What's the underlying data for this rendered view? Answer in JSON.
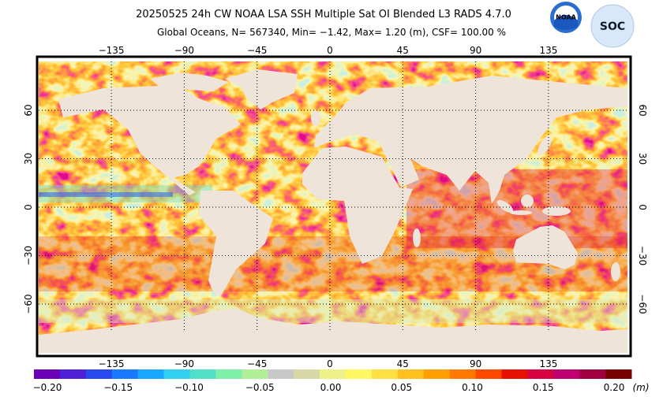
{
  "header": {
    "title": "20250525 24h   CW NOAA LSA SSH   Multiple Sat OI Blended L3 RADS 4.7.0",
    "subtitle": "Global Oceans, N= 567340, Min= −1.42, Max= 1.20 (m), CSF= 100.00 %",
    "logos": [
      "NOAA",
      "SOC"
    ]
  },
  "map": {
    "lon_labels": [
      "−135",
      "−90",
      "−45",
      "0",
      "45",
      "90",
      "135"
    ],
    "lat_labels": [
      "60",
      "30",
      "0",
      "−30",
      "−60"
    ]
  },
  "colorbar": {
    "labels": [
      "−0.20",
      "−0.15",
      "−0.10",
      "−0.05",
      "0.00",
      "0.05",
      "0.10",
      "0.15",
      "0.20"
    ],
    "unit": "(m)",
    "colors": [
      "#6a00b8",
      "#5020d8",
      "#2848f0",
      "#1878ff",
      "#18a8ff",
      "#30d0f0",
      "#50e0c8",
      "#80f0a8",
      "#b0f098",
      "#c8c8c8",
      "#d8d8a8",
      "#eef088",
      "#fff860",
      "#ffe040",
      "#ffc020",
      "#ffa000",
      "#ff7800",
      "#ff4800",
      "#e81000",
      "#d80040",
      "#c00070",
      "#a00040",
      "#780000"
    ]
  }
}
